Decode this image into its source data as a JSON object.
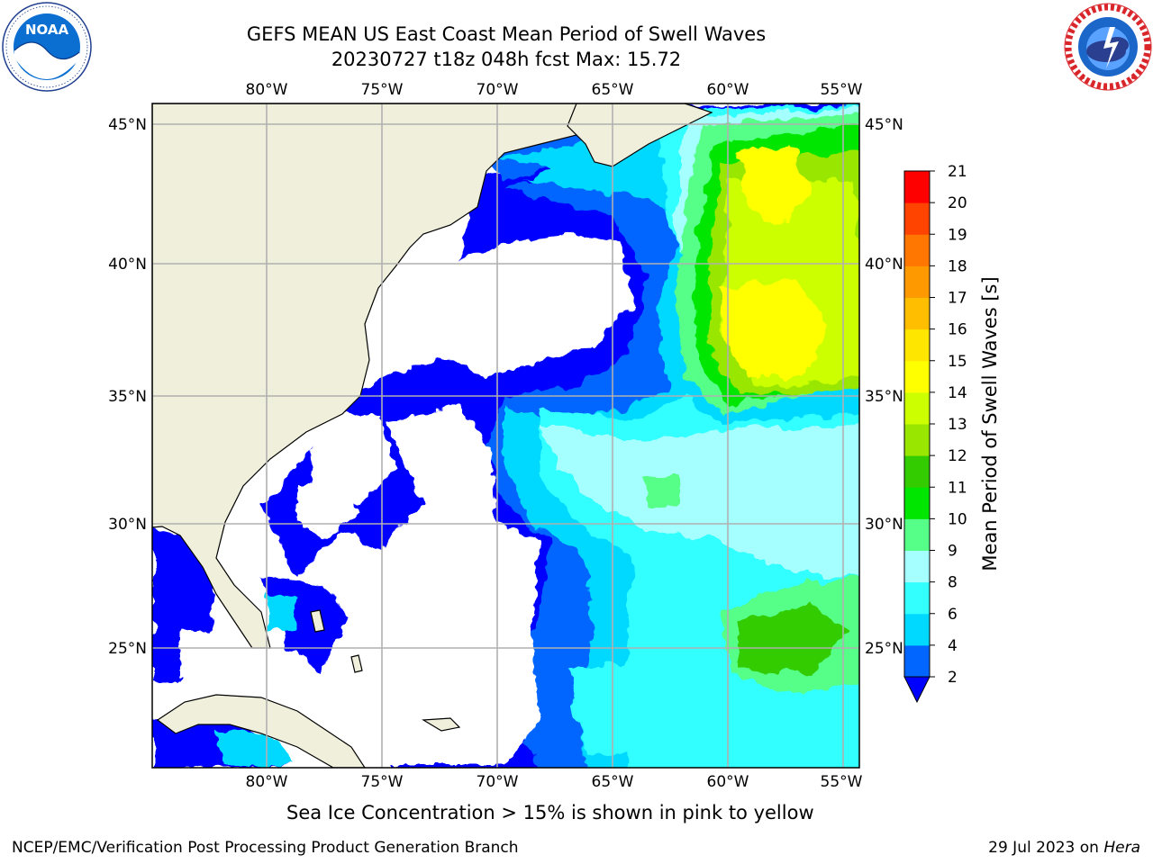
{
  "title": "GEFS MEAN US East Coast Mean Period of Swell Waves",
  "subtitle": "20230727 t18z 048h fcst   Max: 15.72",
  "footer_note": "Sea Ice Concentration > 15% is shown in pink to yellow",
  "footer_left": "NCEP/EMC/Verification Post Processing Product Generation Branch",
  "footer_right_date": "29 Jul 2023 on",
  "footer_right_host": "Hera",
  "logos": {
    "left": {
      "icon": "noaa-logo-icon",
      "text": "NOAA"
    },
    "right": {
      "icon": "national-weather-service-logo-icon"
    }
  },
  "chart_data": {
    "type": "heatmap",
    "title": "GEFS MEAN US East Coast Mean Period of Swell Waves",
    "subtitle": "20230727 t18z 048h fcst   Max: 15.72",
    "max_value": 15.72,
    "lon_ticks": [
      "80°W",
      "75°W",
      "70°W",
      "65°W",
      "60°W",
      "55°W"
    ],
    "lat_ticks": [
      "45°N",
      "40°N",
      "35°N",
      "30°N",
      "25°N"
    ],
    "lon_values": [
      -80,
      -75,
      -70,
      -65,
      -60,
      -55
    ],
    "lat_values": [
      45,
      40,
      35,
      30,
      25
    ],
    "lon_range": [
      -85,
      -54.3
    ],
    "lat_range": [
      20.5,
      45.8
    ],
    "grid": true,
    "colorbar": {
      "label": "Mean Period of Swell Waves [s]",
      "ticks": [
        "2",
        "4",
        "6",
        "8",
        "9",
        "10",
        "11",
        "12",
        "13",
        "14",
        "15",
        "16",
        "17",
        "18",
        "19",
        "20",
        "21"
      ],
      "colors": [
        "#0066ff",
        "#00d9ff",
        "#33ffff",
        "#a6ffff",
        "#55ff88",
        "#00e600",
        "#33cc00",
        "#99e600",
        "#ccff00",
        "#ffff00",
        "#ffe600",
        "#ffbf00",
        "#ff9900",
        "#ff7700",
        "#ff4400",
        "#ff0000"
      ],
      "extend_min_color": "#0000ff",
      "position": "right"
    }
  }
}
